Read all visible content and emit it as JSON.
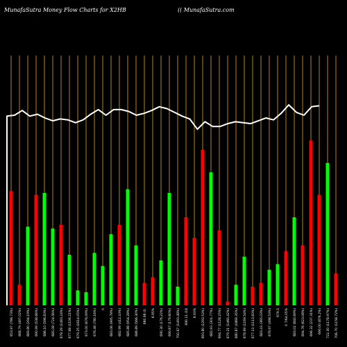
{
  "header": {
    "title": "MunafaSutra  Money Flow  Charts for X2HB",
    "site": "(( MunafaSutra.com"
  },
  "colors": {
    "background": "#000000",
    "up": "#00ff00",
    "down": "#ff0000",
    "grid": "#b8860b",
    "line": "#ffffff",
    "text": "#ffffff"
  },
  "chart_data": {
    "type": "bar",
    "ylim": [
      0,
      100
    ],
    "bars": [
      {
        "label": "653.97 (766.73%)",
        "value": 61,
        "direction": "down"
      },
      {
        "label": "668.79 (497.02%)",
        "value": 11,
        "direction": "down"
      },
      {
        "label": "669.80 (294.19%)",
        "value": 42,
        "direction": "up"
      },
      {
        "label": "690.99 (538.66%)",
        "value": 59,
        "direction": "down"
      },
      {
        "label": "686.10 (596.83%)",
        "value": 60,
        "direction": "up"
      },
      {
        "label": "685.08 (724.56%)",
        "value": 41,
        "direction": "up"
      },
      {
        "label": "678.29 (1483.24%)",
        "value": 43,
        "direction": "down"
      },
      {
        "label": "677.68 (1106.21%)",
        "value": 27,
        "direction": "up"
      },
      {
        "label": "679.25 (1614.05%)",
        "value": 8,
        "direction": "up"
      },
      {
        "label": "673.00 (676.09%)",
        "value": 7,
        "direction": "up"
      },
      {
        "label": "676.48 (780.16%)",
        "value": 28,
        "direction": "up"
      },
      {
        "label": "0",
        "value": 21,
        "direction": "up"
      },
      {
        "label": "683.06 (995.78%)",
        "value": 38,
        "direction": "up"
      },
      {
        "label": "682.99 (412.43%)",
        "value": 43,
        "direction": "down"
      },
      {
        "label": "685.88 (954.28%)",
        "value": 62,
        "direction": "up"
      },
      {
        "label": "686.89 (566.30%)",
        "value": 32,
        "direction": "up"
      },
      {
        "label": "680.98 (0.",
        "value": 12,
        "direction": "down"
      },
      {
        "label": "6.95%",
        "value": 15,
        "direction": "down"
      },
      {
        "label": "690.30 (176.22%)",
        "value": 24,
        "direction": "up"
      },
      {
        "label": "690.67 (179.60%)",
        "value": 60,
        "direction": "up"
      },
      {
        "label": "700.67 (1493.48%)",
        "value": 10,
        "direction": "up"
      },
      {
        "label": "690.11 (18",
        "value": 47,
        "direction": "down"
      },
      {
        "label": "6.93%",
        "value": 36,
        "direction": "down"
      },
      {
        "label": "693.80 (1293.53%)",
        "value": 83,
        "direction": "down"
      },
      {
        "label": "682.93 (301.77%)",
        "value": 71,
        "direction": "up"
      },
      {
        "label": "694.77 (1128.25%)",
        "value": 40,
        "direction": "down"
      },
      {
        "label": "679.21 (1460.42%)",
        "value": 2,
        "direction": "down"
      },
      {
        "label": "680.87 (1869.35%)",
        "value": 11,
        "direction": "up"
      },
      {
        "label": "678.69 (1169.54%)",
        "value": 26,
        "direction": "up"
      },
      {
        "label": "677.13 (1113.83%)",
        "value": 10,
        "direction": "down"
      },
      {
        "label": "683.43 (365.03%)",
        "value": 12,
        "direction": "down"
      },
      {
        "label": "676.97 (498.53%)",
        "value": 19,
        "direction": "up"
      },
      {
        "label": "679.5",
        "value": 22,
        "direction": "up"
      },
      {
        "label": "0 7/64.05%",
        "value": 29,
        "direction": "down"
      },
      {
        "label": "683.02 (840.69%)",
        "value": 47,
        "direction": "up"
      },
      {
        "label": "694.76 (623.08%)",
        "value": 32,
        "direction": "down"
      },
      {
        "label": "696.32 (237.31%)",
        "value": 88,
        "direction": "down"
      },
      {
        "label": "690.00 (876.2%)",
        "value": 59,
        "direction": "down"
      },
      {
        "label": "722.30 (1178.97%)",
        "value": 76,
        "direction": "up"
      },
      {
        "label": "706.70 (1158.72%)",
        "value": 17,
        "direction": "down"
      }
    ],
    "price_line": [
      101,
      101.5,
      104,
      101,
      102,
      100,
      98.5,
      99.5,
      99,
      97.5,
      99,
      102,
      104.5,
      101.5,
      104.5,
      104.5,
      103.5,
      101.5,
      102.5,
      104,
      106,
      105,
      103,
      101,
      99.5,
      94,
      98,
      95.5,
      95.5,
      97,
      98,
      97.5,
      97,
      98.5,
      100,
      99,
      102.5,
      107,
      103,
      101.5,
      106,
      106.5
    ]
  }
}
